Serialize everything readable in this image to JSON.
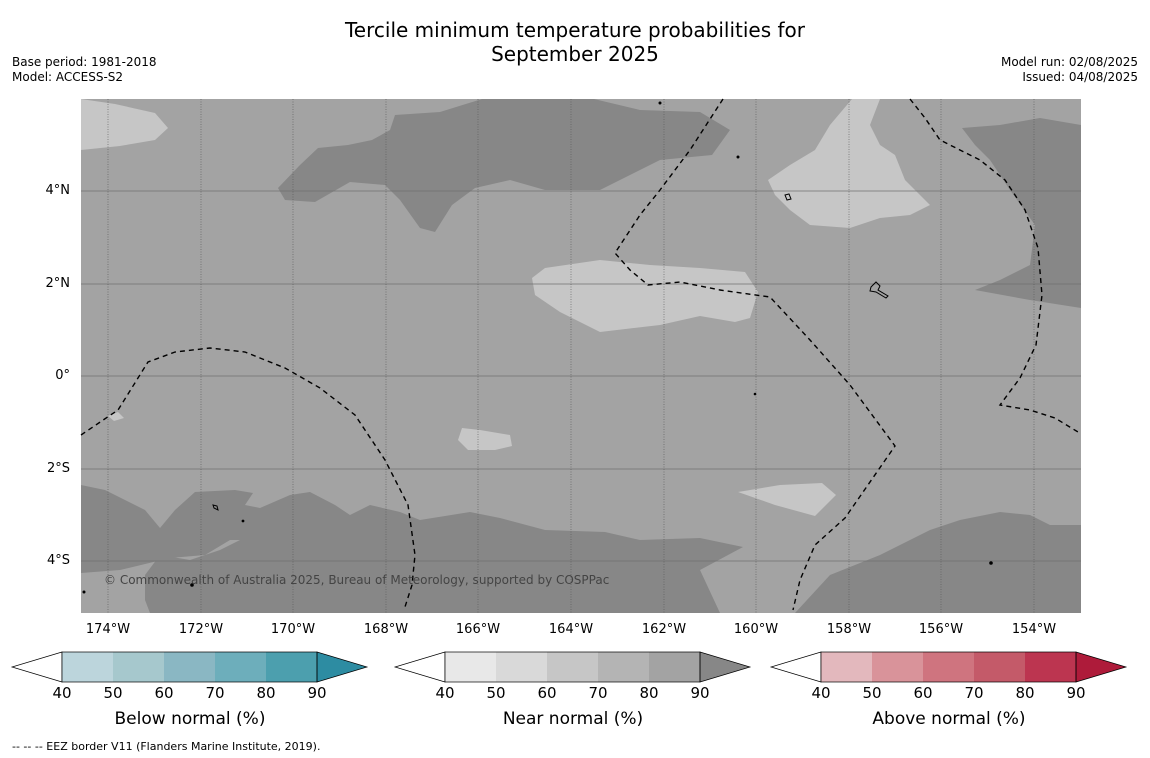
{
  "title": {
    "line1": "Tercile minimum temperature probabilities for",
    "line2": "September 2025"
  },
  "meta": {
    "base_period": "Base period: 1981-2018",
    "model": "Model: ACCESS-S2",
    "model_run": "Model run: 02/08/2025",
    "issued": "Issued: 04/08/2025"
  },
  "map": {
    "latitude_labels": [
      "4°N",
      "2°N",
      "0°",
      "2°S",
      "4°S"
    ],
    "longitude_labels": [
      "174°W",
      "172°W",
      "170°W",
      "168°W",
      "166°W",
      "164°W",
      "162°W",
      "160°W",
      "158°W",
      "156°W",
      "154°W"
    ],
    "credit": "© Commonwealth of Australia 2025, Bureau of Meteorology, supported by COSPPac",
    "colors": {
      "near_normal_50_60": "#c6c6c6",
      "near_normal_60_70": "#a3a3a3",
      "near_normal_70_80": "#878787"
    }
  },
  "colorbars": [
    {
      "name": "below",
      "title": "Below normal (%)",
      "ticks": [
        "40",
        "50",
        "60",
        "70",
        "80",
        "90"
      ],
      "colors": [
        "#bcd5dc",
        "#a6c8cd",
        "#8ab7c3",
        "#6daebb",
        "#4c9fae",
        "#2d8ca2"
      ]
    },
    {
      "name": "near",
      "title": "Near normal (%)",
      "ticks": [
        "40",
        "50",
        "60",
        "70",
        "80",
        "90"
      ],
      "colors": [
        "#e8e8e8",
        "#d9d9d9",
        "#c6c6c6",
        "#b4b4b4",
        "#a3a3a3",
        "#878787"
      ]
    },
    {
      "name": "above",
      "title": "Above normal (%)",
      "ticks": [
        "40",
        "50",
        "60",
        "70",
        "80",
        "90"
      ],
      "colors": [
        "#e3b8bd",
        "#d9939a",
        "#cf747f",
        "#c45a69",
        "#bc3550",
        "#ae1b3a"
      ]
    }
  ],
  "footnote": "--  --  -- EEZ border V11 (Flanders Marine Institute, 2019)."
}
